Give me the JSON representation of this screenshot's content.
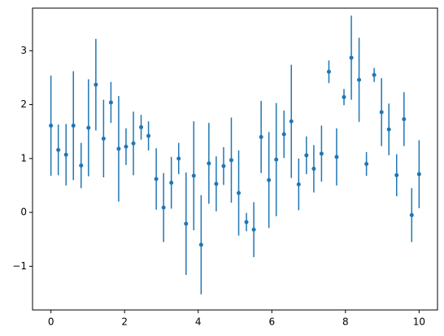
{
  "chart_data": {
    "type": "errorbar",
    "color": "#1f77b4",
    "x": [
      0,
      0.2,
      0.41,
      0.61,
      0.82,
      1.02,
      1.22,
      1.43,
      1.63,
      1.84,
      2.04,
      2.24,
      2.45,
      2.65,
      2.86,
      3.06,
      3.27,
      3.47,
      3.67,
      3.88,
      4.08,
      4.29,
      4.49,
      4.69,
      4.9,
      5.1,
      5.31,
      5.51,
      5.71,
      5.92,
      6.12,
      6.33,
      6.53,
      6.73,
      6.94,
      7.14,
      7.35,
      7.55,
      7.76,
      7.96,
      8.16,
      8.37,
      8.57,
      8.78,
      8.98,
      9.18,
      9.39,
      9.59,
      9.8,
      10
    ],
    "values": [
      1.61,
      1.16,
      1.07,
      1.61,
      0.87,
      1.57,
      2.37,
      1.37,
      2.04,
      1.18,
      1.22,
      1.28,
      1.58,
      1.42,
      0.62,
      0.09,
      0.55,
      1.0,
      -0.21,
      0.68,
      -0.6,
      0.91,
      0.53,
      0.86,
      0.97,
      0.36,
      -0.18,
      -0.32,
      1.4,
      0.6,
      0.98,
      1.45,
      1.69,
      0.52,
      1.06,
      0.81,
      1.09,
      2.61,
      1.03,
      2.14,
      2.87,
      2.46,
      0.9,
      2.55,
      1.86,
      1.54,
      0.69,
      1.73,
      -0.05,
      0.71
    ],
    "errors": [
      0.93,
      0.47,
      0.57,
      1.01,
      0.42,
      0.9,
      0.85,
      0.72,
      0.38,
      0.98,
      0.34,
      0.59,
      0.23,
      0.27,
      0.57,
      0.64,
      0.48,
      0.29,
      0.95,
      1.01,
      0.92,
      0.75,
      0.51,
      0.35,
      0.79,
      0.79,
      0.17,
      0.51,
      0.67,
      0.89,
      1.05,
      0.44,
      1.05,
      0.48,
      0.35,
      0.44,
      0.52,
      0.21,
      0.53,
      0.15,
      0.78,
      0.78,
      0.22,
      0.13,
      0.63,
      0.48,
      0.39,
      0.5,
      0.5,
      0.63
    ],
    "xlim": [
      -0.5,
      10.5
    ],
    "ylim": [
      -1.81,
      3.79
    ],
    "xticks": [
      0,
      2,
      4,
      6,
      8,
      10
    ],
    "yticks": [
      {
        "value": -1,
        "label": "−1"
      },
      0,
      1,
      2,
      3
    ]
  }
}
